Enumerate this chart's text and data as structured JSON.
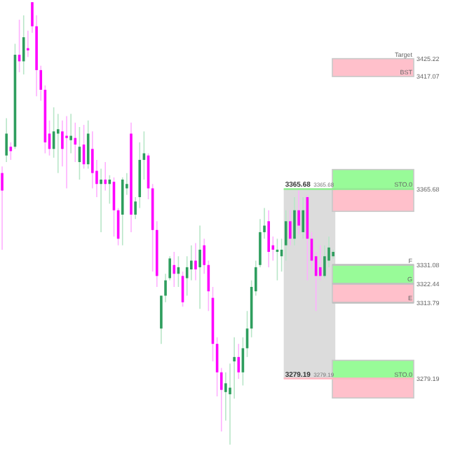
{
  "chart_data": {
    "type": "candlestick",
    "tick_labels": "y",
    "ylim": [
      3247,
      3452
    ],
    "yticks": [
      3279.19,
      3313.79,
      3322.44,
      3331.08,
      3365.68,
      3417.07,
      3425.22
    ],
    "categories": [
      null,
      null,
      null,
      null,
      null,
      null,
      null,
      null,
      null,
      null,
      null,
      null,
      null,
      null,
      null,
      null,
      null,
      null,
      null,
      null,
      null,
      null,
      null,
      null,
      null,
      null,
      null,
      null,
      null,
      null,
      null,
      null,
      null,
      null,
      null,
      null,
      null,
      null,
      null,
      null,
      null,
      null,
      null,
      null,
      null,
      null,
      null,
      null,
      null,
      null,
      null,
      null,
      null,
      null,
      null,
      null,
      null,
      null,
      null,
      null,
      null,
      null,
      null,
      null,
      null,
      null,
      null,
      null,
      null,
      null,
      null,
      null,
      null,
      null,
      null,
      null,
      null,
      null,
      null,
      null,
      null,
      null,
      null,
      null,
      null,
      null,
      null,
      null,
      null,
      null,
      null,
      null,
      null,
      null,
      null,
      null,
      null,
      null,
      null,
      null,
      null,
      null,
      null,
      null,
      null,
      null,
      null
    ],
    "ohlc": [
      [
        3373,
        3376,
        3338,
        3365
      ],
      [
        3381,
        3398,
        3378,
        3391
      ],
      [
        3385,
        3387,
        3379,
        3383
      ],
      [
        3385,
        3432,
        3384,
        3427
      ],
      [
        3427,
        3443,
        3419,
        3424
      ],
      [
        3424,
        3445,
        3418,
        3435
      ],
      [
        3430,
        3438,
        3426,
        3429
      ],
      [
        3451,
        3451,
        3437,
        3440
      ],
      [
        3440,
        3445,
        3408,
        3420
      ],
      [
        3420,
        3422,
        3406,
        3411
      ],
      [
        3411,
        3413,
        3382,
        3387
      ],
      [
        3391,
        3397,
        3381,
        3384
      ],
      [
        3384,
        3403,
        3380,
        3392
      ],
      [
        3391,
        3400,
        3373,
        3393
      ],
      [
        3392,
        3397,
        3376,
        3384
      ],
      [
        3390,
        3399,
        3366,
        3389
      ],
      [
        3388,
        3400,
        3382,
        3390
      ],
      [
        3389,
        3396,
        3378,
        3386
      ],
      [
        3378,
        3394,
        3370,
        3385
      ],
      [
        3386,
        3395,
        3375,
        3377
      ],
      [
        3377,
        3397,
        3375,
        3391
      ],
      [
        3384,
        3392,
        3366,
        3373
      ],
      [
        3374,
        3379,
        3362,
        3368
      ],
      [
        3368,
        3375,
        3346,
        3370
      ],
      [
        3370,
        3378,
        3365,
        3368
      ],
      [
        3368,
        3372,
        3359,
        3370
      ],
      [
        3369,
        3371,
        3344,
        3356
      ],
      [
        3356,
        3357,
        3340,
        3343
      ],
      [
        3354,
        3371,
        3340,
        3370
      ],
      [
        3366,
        3373,
        3363,
        3368
      ],
      [
        3391,
        3396,
        3346,
        3354
      ],
      [
        3354,
        3362,
        3352,
        3360
      ],
      [
        3362,
        3387,
        3357,
        3379
      ],
      [
        3379,
        3392,
        3370,
        3382
      ],
      [
        3381,
        3382,
        3361,
        3366
      ],
      [
        3366,
        3368,
        3328,
        3347
      ],
      [
        3347,
        3351,
        3321,
        3326
      ],
      [
        3302,
        3317,
        3295,
        3317
      ],
      [
        3317,
        3327,
        3314,
        3324
      ],
      [
        3325,
        3335,
        3324,
        3334
      ],
      [
        3331,
        3337,
        3321,
        3327
      ],
      [
        3327,
        3335,
        3321,
        3330
      ],
      [
        3326,
        3328,
        3312,
        3314
      ],
      [
        3325,
        3335,
        3317,
        3330
      ],
      [
        3329,
        3340,
        3324,
        3333
      ],
      [
        3333,
        3341,
        3324,
        3329
      ],
      [
        3330,
        3349,
        3311,
        3338
      ],
      [
        3340,
        3343,
        3327,
        3331
      ],
      [
        3331,
        3333,
        3310,
        3319
      ],
      [
        3316,
        3321,
        3287,
        3295
      ],
      [
        3295,
        3298,
        3271,
        3282
      ],
      [
        3282,
        3284,
        3255,
        3274
      ],
      [
        3273,
        3282,
        3260,
        3277
      ],
      [
        3272,
        3286,
        3249,
        3275
      ],
      [
        3287,
        3298,
        3270,
        3289
      ],
      [
        3289,
        3295,
        3279,
        3282
      ],
      [
        3282,
        3298,
        3276,
        3293
      ],
      [
        3293,
        3310,
        3289,
        3302
      ],
      [
        3302,
        3324,
        3298,
        3321
      ],
      [
        3319,
        3333,
        3317,
        3330
      ],
      [
        3331,
        3352,
        3330,
        3346
      ],
      [
        3346,
        3357,
        3343,
        3349
      ],
      [
        3351,
        3356,
        3330,
        3337
      ],
      [
        3340,
        3344,
        3333,
        3338
      ],
      [
        3337,
        3343,
        3324,
        3338
      ],
      [
        3335,
        3343,
        3328,
        3338
      ],
      [
        3340,
        3356,
        3333,
        3351
      ],
      [
        3351,
        3356,
        3340,
        3343
      ],
      [
        3343,
        3362,
        3340,
        3356
      ],
      [
        3356,
        3365,
        3345,
        3349
      ],
      [
        3346,
        3362,
        3343,
        3356
      ],
      [
        3362,
        3363,
        3324,
        3343
      ],
      [
        3343,
        3346,
        3329,
        3333
      ],
      [
        3335,
        3337,
        3310,
        3326
      ],
      [
        3330,
        3340,
        3324,
        3326
      ],
      [
        3326,
        3340,
        3325,
        3335
      ],
      [
        3333,
        3344,
        3330,
        3339
      ],
      [
        3335,
        3338,
        3334,
        3337
      ],
      null,
      null,
      null,
      null,
      null,
      null,
      null,
      null,
      null,
      null,
      null,
      null,
      null,
      null,
      null,
      null,
      null,
      null,
      null,
      null,
      null,
      null,
      null,
      null,
      null,
      null,
      null,
      null,
      null
    ],
    "ref_lines": [
      {
        "axis": "y",
        "value": 3365.68,
        "label": "3365.68",
        "color": "#90ee90"
      },
      {
        "axis": "y",
        "value": 3331.08,
        "color": "#c0c0c0"
      },
      {
        "axis": "y",
        "value": 3322.44,
        "color": "#c0c0c0"
      },
      {
        "axis": "y",
        "value": 3313.79,
        "color": "#c0c0c0"
      },
      {
        "axis": "y",
        "value": 3279.19,
        "label": "3279.19",
        "color": "#ffb6c1"
      }
    ],
    "bands": [
      {
        "axis": "y",
        "from": 3279.19,
        "to": 3365.68,
        "color": "#dcdcdc"
      },
      {
        "axis": "y",
        "from": 3417.07,
        "to": 3425.22,
        "color": "#ffc0cb"
      },
      {
        "axis": "y",
        "from": 3365.68,
        "to": 3374.6,
        "color": "#98fb98"
      },
      {
        "axis": "y",
        "from": 3355.5,
        "to": 3365.68,
        "color": "#ffc0cb"
      },
      {
        "axis": "y",
        "from": 3322.44,
        "to": 3331.08,
        "color": "#98fb98"
      },
      {
        "axis": "y",
        "from": 3313.79,
        "to": 3322.44,
        "color": "#ffc0cb"
      },
      {
        "axis": "y",
        "from": 3279.19,
        "to": 3287.5,
        "color": "#98fb98"
      },
      {
        "axis": "y",
        "from": 3270.3,
        "to": 3279.19,
        "color": "#ffc0cb"
      }
    ],
    "annotations": [
      {
        "text": "Target",
        "y": 3425.22
      },
      {
        "text": "BST",
        "y": 3417.07
      },
      {
        "text": "STO.0",
        "y": 3365.68
      },
      {
        "text": "F",
        "y": 3331.08
      },
      {
        "text": "G",
        "y": 3322.44
      },
      {
        "text": "E",
        "y": 3313.79
      },
      {
        "text": "STO.0",
        "y": 3279.19
      }
    ]
  }
}
